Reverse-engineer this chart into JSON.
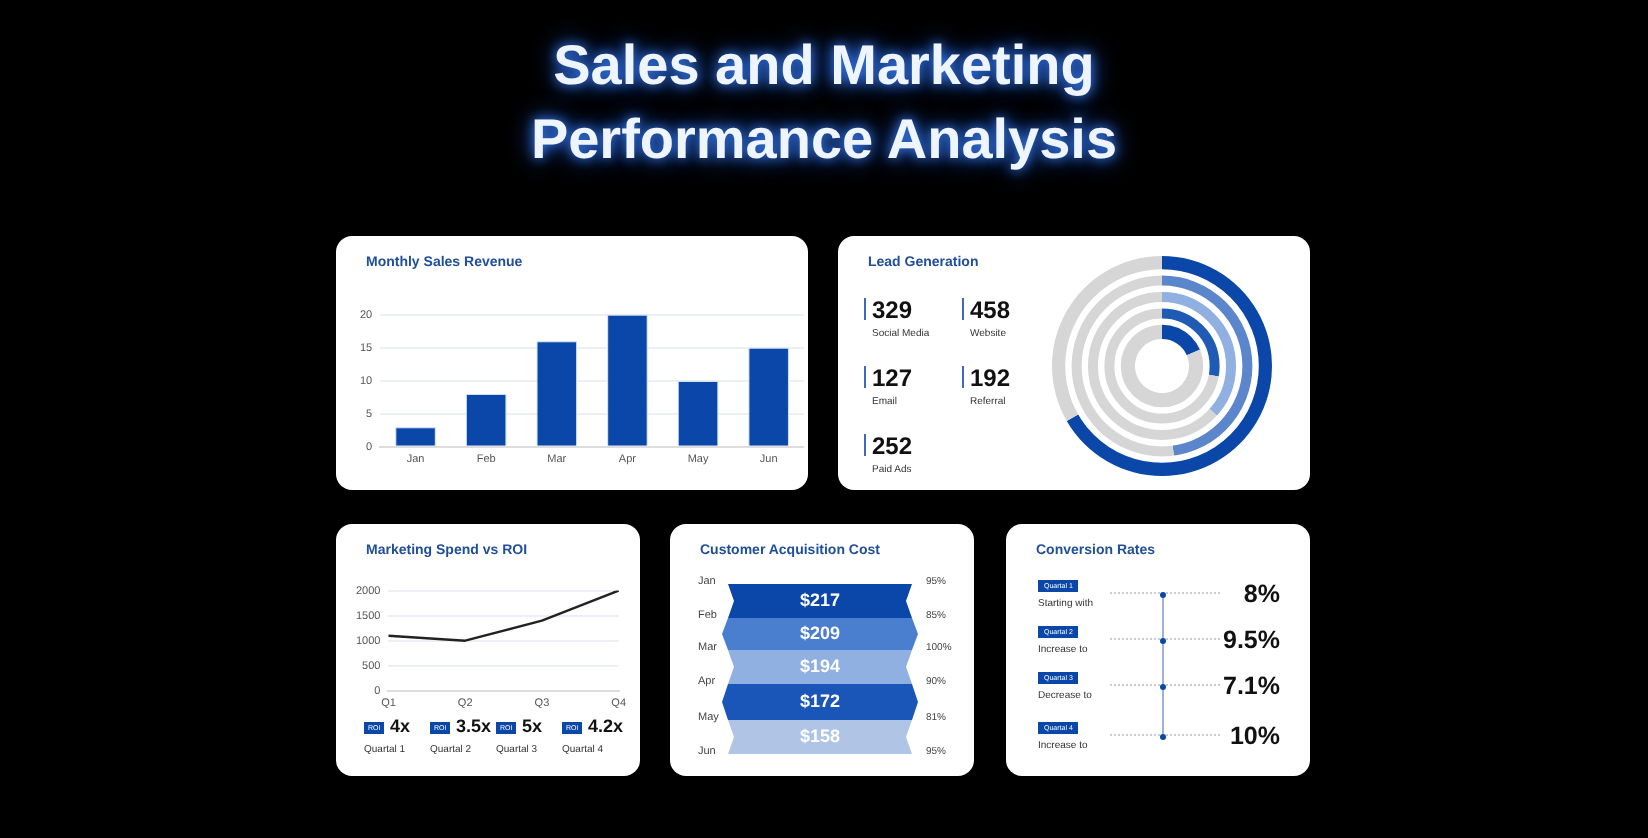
{
  "chart_data": [
    {
      "type": "other",
      "title": "Sales and Marketing Performance Analysis"
    },
    {
      "type": "bar",
      "title": "Monthly Sales Revenue",
      "categories": [
        "Jan",
        "Feb",
        "Mar",
        "Apr",
        "May",
        "Jun"
      ],
      "values": [
        3,
        8,
        16,
        20,
        10,
        15
      ],
      "color": "#0a47a9",
      "ylim": [
        0,
        20
      ],
      "yticks": [
        0,
        5,
        10,
        15,
        20
      ],
      "grid": "y"
    },
    {
      "type": "other",
      "title": "Lead Generation",
      "categories": [
        "Social Media",
        "Website",
        "Email",
        "Referral",
        "Paid Ads"
      ],
      "values": [
        329,
        458,
        127,
        192,
        252
      ],
      "value_labels": [
        "329",
        "458",
        "127",
        "192",
        "252"
      ]
    },
    {
      "type": "line",
      "title": "Marketing Spend vs ROI",
      "categories": [
        "Q1",
        "Q2",
        "Q3",
        "Q4"
      ],
      "values": [
        1100,
        1000,
        1400,
        2000
      ],
      "color": "#222222",
      "ylim": [
        0,
        2000
      ],
      "yticks": [
        0,
        500,
        {
          "value": 1000,
          "label": "1000"
        },
        {
          "value": 1500,
          "label": "1500"
        },
        {
          "value": 2000,
          "label": "2000"
        }
      ],
      "grid": "y",
      "annotations": [
        "ROI",
        "4x",
        "Quartal 1",
        "ROI",
        "3.5x",
        "Quartal 2",
        "ROI",
        "5x",
        "Quartal 3",
        "ROI",
        "4.2x",
        "Quartal 4"
      ]
    },
    {
      "type": "other",
      "title": "Customer Acquisition Cost",
      "values": [
        217,
        209,
        194,
        172,
        158
      ],
      "value_labels": [
        "$217",
        "$209",
        "$194",
        "$172",
        "$158"
      ],
      "colors": [
        "#0a47a9",
        "#4a7fcf",
        "#8fb0e0",
        "#1a56b8",
        "#b0c4e6"
      ],
      "annotations": [
        "Jan",
        "95%",
        "Feb",
        "85%",
        "Mar",
        "100%",
        "Apr",
        "90%",
        "May",
        "81%",
        "Jun",
        "95%"
      ]
    },
    {
      "type": "other",
      "title": "Conversion Rates",
      "categories": [
        "Quartal 1",
        "Quartal 2",
        "Quartal 3",
        "Quartal 4"
      ],
      "value_labels": [
        "8%",
        "9.5%",
        "7.1%",
        "10%"
      ],
      "annotations": [
        "Starting with",
        "Increase to",
        "Decrease to",
        "Increase to"
      ]
    }
  ]
}
